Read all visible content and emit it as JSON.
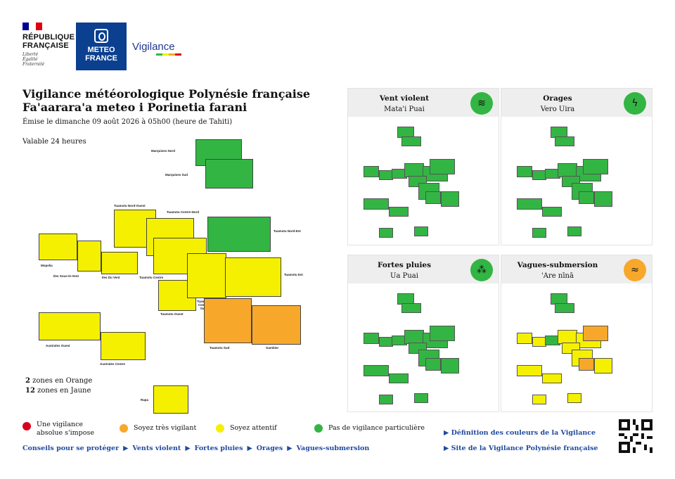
{
  "header": {
    "republique": [
      "RÉPUBLIQUE",
      "FRANÇAISE"
    ],
    "motto": [
      "Liberté",
      "Égalité",
      "Fraternité"
    ],
    "meteo_logo": [
      "METEO",
      "FRANCE"
    ],
    "vigilance_logo": "Vigilance",
    "colors": {
      "flag_blue": "#000091",
      "flag_red": "#e1000f",
      "meteo_blue": "#0b3f8f"
    }
  },
  "bulletin": {
    "title_fr": "Vigilance météorologique Polynésie française",
    "title_tah": "Fa'aarara'a meteo i Porinetia farani",
    "emitted": "Émise le dimanche 09 août 2026 à 05h00 (heure de Tahiti)",
    "validity": "Valable 24 heures",
    "count_orange_n": "2",
    "count_orange_t": " zones en Orange",
    "count_yellow_n": "12",
    "count_yellow_t": " zones en Jaune"
  },
  "zones": {
    "marquises_nord": {
      "label": "Marquises Nord",
      "level": "green"
    },
    "marquises_sud": {
      "label": "Marquises Sud",
      "level": "green"
    },
    "tuamotu_nord_ouest": {
      "label": "Tuamotu Nord-Ouest",
      "level": "yellow"
    },
    "tuamotu_centre_nord": {
      "label": "Tuamotu Centre-Nord",
      "level": "yellow"
    },
    "tuamotu_nord_est": {
      "label": "Tuamotu Nord-Est",
      "level": "green"
    },
    "mopelia": {
      "label": "Mopelia",
      "level": "yellow"
    },
    "iles_sous_le_vent": {
      "label": "Iles Sous-le-Vent",
      "level": "yellow"
    },
    "iles_du_vent": {
      "label": "Iles Du Vent",
      "level": "yellow"
    },
    "tuamotu_centre": {
      "label": "Tuamotu Centre",
      "level": "yellow"
    },
    "tuamotu_est": {
      "label": "Tuamotu Est",
      "level": "yellow"
    },
    "tuamotu_ouest": {
      "label": "Tuamotu Ouest",
      "level": "yellow"
    },
    "tuamotu_centre_sud": {
      "label": "Tuamotu Centre Sud",
      "level": "yellow"
    },
    "tuamotu_sud": {
      "label": "Tuamotu Sud",
      "level": "orange"
    },
    "gambier": {
      "label": "Gambier",
      "level": "orange"
    },
    "australes_ouest": {
      "label": "Australes Ouest",
      "level": "yellow"
    },
    "australes_centre": {
      "label": "Australes Centre",
      "level": "yellow"
    },
    "rapa": {
      "label": "Rapa",
      "level": "yellow"
    }
  },
  "panels": [
    {
      "title": "Vent violent",
      "subtitle": "Mata'i Puai",
      "icon": "wind-icon",
      "color": "#33b544"
    },
    {
      "title": "Orages",
      "subtitle": "Vero Uira",
      "icon": "lightning-icon",
      "color": "#33b544"
    },
    {
      "title": "Fortes pluies",
      "subtitle": "Ua Puai",
      "icon": "rain-icon",
      "color": "#33b544"
    },
    {
      "title": "Vagues-submersion",
      "subtitle": "'Are nīnā",
      "icon": "waves-icon",
      "color": "#f7a82b"
    }
  ],
  "legend": {
    "red": {
      "label": "Une vigilance absolue s'impose",
      "color": "#d9001b"
    },
    "orange": {
      "label": "Soyez très vigilant",
      "color": "#f7a82b"
    },
    "yellow": {
      "label": "Soyez attentif",
      "color": "#f5f000"
    },
    "green": {
      "label": "Pas de vigilance particulière",
      "color": "#33b544"
    }
  },
  "links": {
    "conseils": "Conseils pour se protéger",
    "vents": "Vents violent",
    "pluies": "Fortes pluies",
    "orages": "Orages",
    "vagues": "Vagues-submersion",
    "definition": "Définition des couleurs de la Vigilance",
    "site": "Site de la Vigilance Polynésie française"
  },
  "colors": {
    "orange": "#f7a82b",
    "yellow": "#f5f000",
    "green": "#33b544",
    "link": "#1f4a9e"
  }
}
